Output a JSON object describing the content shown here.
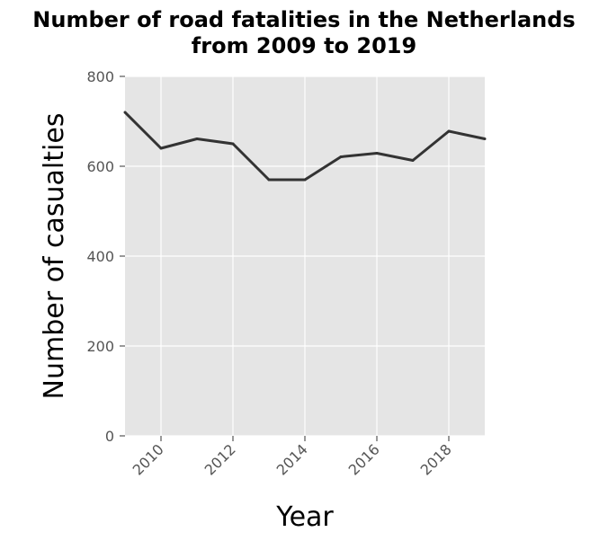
{
  "chart_data": {
    "type": "line",
    "title": "Number of road fatalities in the Netherlands from 2009 to 2019",
    "title_lines": [
      "Number of road fatalities in the Netherlands",
      "from 2009 to 2019"
    ],
    "xlabel": "Year",
    "ylabel": "Number of casualties",
    "x": [
      2009,
      2010,
      2011,
      2012,
      2013,
      2014,
      2015,
      2016,
      2017,
      2018,
      2019
    ],
    "values": [
      720,
      640,
      661,
      650,
      570,
      570,
      621,
      629,
      613,
      678,
      661
    ],
    "xlim": [
      2009,
      2019
    ],
    "ylim": [
      0,
      800
    ],
    "xticks": [
      2010,
      2012,
      2014,
      2016,
      2018
    ],
    "yticks": [
      0,
      200,
      400,
      600,
      800
    ],
    "grid": true,
    "colors": {
      "panel": "#e5e5e5",
      "grid": "#ffffff",
      "line": "#333333"
    }
  }
}
